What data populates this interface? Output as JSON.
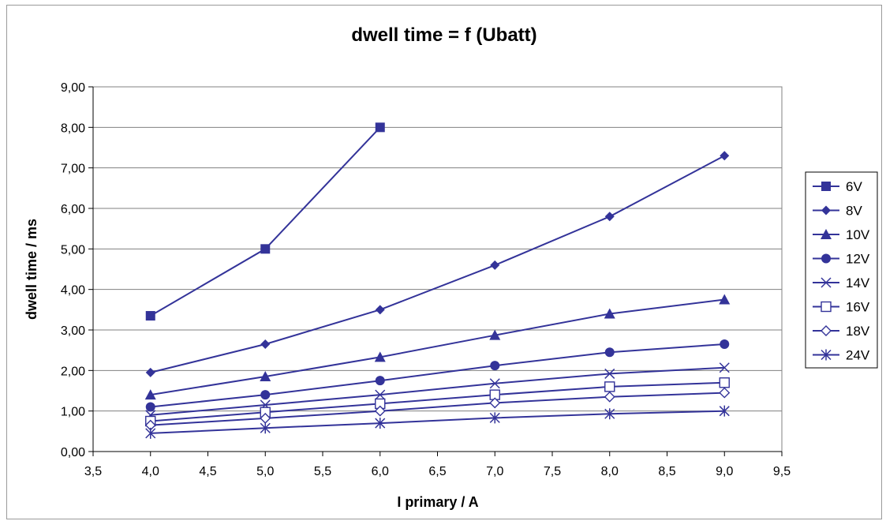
{
  "chart_data": {
    "type": "line",
    "title": "dwell time = f (Ubatt)",
    "xlabel": "I primary / A",
    "ylabel": "dwell time / ms",
    "xlim": [
      3.5,
      9.5
    ],
    "ylim": [
      0,
      9
    ],
    "x_ticks": [
      "3,5",
      "4,0",
      "4,5",
      "5,0",
      "5,5",
      "6,0",
      "6,5",
      "7,0",
      "7,5",
      "8,0",
      "8,5",
      "9,0",
      "9,5"
    ],
    "y_ticks": [
      "0,00",
      "1,00",
      "2,00",
      "3,00",
      "4,00",
      "5,00",
      "6,00",
      "7,00",
      "8,00",
      "9,00"
    ],
    "grid": "horizontal",
    "legend_position": "right",
    "line_color": "#333399",
    "series": [
      {
        "name": "6V",
        "marker": "square-filled",
        "x": [
          4,
          5,
          6
        ],
        "y": [
          3.35,
          5.0,
          8.0
        ]
      },
      {
        "name": "8V",
        "marker": "diamond-filled",
        "x": [
          4,
          5,
          6,
          7,
          8,
          9
        ],
        "y": [
          1.95,
          2.65,
          3.5,
          4.6,
          5.8,
          7.3
        ]
      },
      {
        "name": "10V",
        "marker": "triangle-filled",
        "x": [
          4,
          5,
          6,
          7,
          8,
          9
        ],
        "y": [
          1.4,
          1.85,
          2.33,
          2.87,
          3.4,
          3.75
        ]
      },
      {
        "name": "12V",
        "marker": "circle-filled",
        "x": [
          4,
          5,
          6,
          7,
          8,
          9
        ],
        "y": [
          1.1,
          1.4,
          1.75,
          2.12,
          2.45,
          2.65
        ]
      },
      {
        "name": "14V",
        "marker": "x",
        "x": [
          4,
          5,
          6,
          7,
          8,
          9
        ],
        "y": [
          0.9,
          1.15,
          1.4,
          1.68,
          1.92,
          2.07
        ]
      },
      {
        "name": "16V",
        "marker": "square-open",
        "x": [
          4,
          5,
          6,
          7,
          8,
          9
        ],
        "y": [
          0.75,
          0.97,
          1.18,
          1.4,
          1.6,
          1.7
        ]
      },
      {
        "name": "18V",
        "marker": "diamond-open",
        "x": [
          4,
          5,
          6,
          7,
          8,
          9
        ],
        "y": [
          0.65,
          0.82,
          1.0,
          1.2,
          1.35,
          1.45
        ]
      },
      {
        "name": "24V",
        "marker": "asterisk",
        "x": [
          4,
          5,
          6,
          7,
          8,
          9
        ],
        "y": [
          0.45,
          0.58,
          0.7,
          0.83,
          0.93,
          1.0
        ]
      }
    ]
  }
}
